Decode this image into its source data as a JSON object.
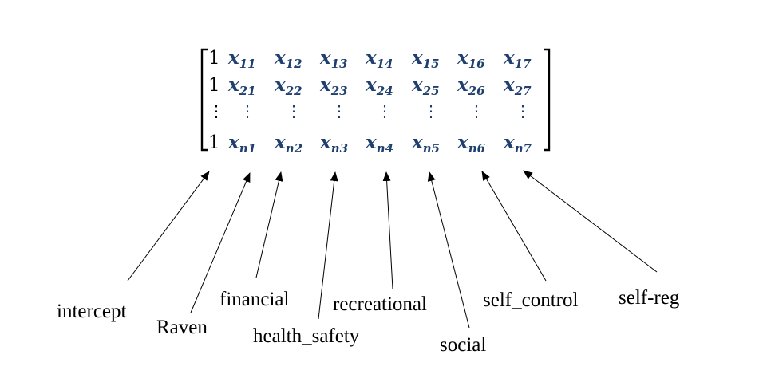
{
  "matrix": {
    "rows": [
      {
        "one": "1",
        "vars": [
          {
            "base": "x",
            "sub": "11"
          },
          {
            "base": "x",
            "sub": "12"
          },
          {
            "base": "x",
            "sub": "13"
          },
          {
            "base": "x",
            "sub": "14"
          },
          {
            "base": "x",
            "sub": "15"
          },
          {
            "base": "x",
            "sub": "16"
          },
          {
            "base": "x",
            "sub": "17"
          }
        ]
      },
      {
        "one": "1",
        "vars": [
          {
            "base": "x",
            "sub": "21"
          },
          {
            "base": "x",
            "sub": "22"
          },
          {
            "base": "x",
            "sub": "23"
          },
          {
            "base": "x",
            "sub": "24"
          },
          {
            "base": "x",
            "sub": "25"
          },
          {
            "base": "x",
            "sub": "26"
          },
          {
            "base": "x",
            "sub": "27"
          }
        ]
      },
      {
        "one": "⋮",
        "vars": [
          {
            "base": "⋮",
            "sub": ""
          },
          {
            "base": "⋮",
            "sub": ""
          },
          {
            "base": "⋮",
            "sub": ""
          },
          {
            "base": "⋮",
            "sub": ""
          },
          {
            "base": "⋮",
            "sub": ""
          },
          {
            "base": "⋮",
            "sub": ""
          },
          {
            "base": "⋮",
            "sub": ""
          }
        ]
      },
      {
        "one": "1",
        "vars": [
          {
            "base": "x",
            "sub": "n1"
          },
          {
            "base": "x",
            "sub": "n2"
          },
          {
            "base": "x",
            "sub": "n3"
          },
          {
            "base": "x",
            "sub": "n4"
          },
          {
            "base": "x",
            "sub": "n5"
          },
          {
            "base": "x",
            "sub": "n6"
          },
          {
            "base": "x",
            "sub": "n7"
          }
        ]
      }
    ]
  },
  "labels": [
    {
      "id": "intercept",
      "text": "intercept"
    },
    {
      "id": "raven",
      "text": "Raven"
    },
    {
      "id": "financial",
      "text": "financial"
    },
    {
      "id": "health-safety",
      "text": "health_safety"
    },
    {
      "id": "recreational",
      "text": "recreational"
    },
    {
      "id": "social",
      "text": "social"
    },
    {
      "id": "self-control",
      "text": "self_control"
    },
    {
      "id": "self-reg",
      "text": "self-reg"
    }
  ],
  "colors": {
    "variable": "#1f3f6e",
    "text": "#000000",
    "background": "#ffffff"
  }
}
